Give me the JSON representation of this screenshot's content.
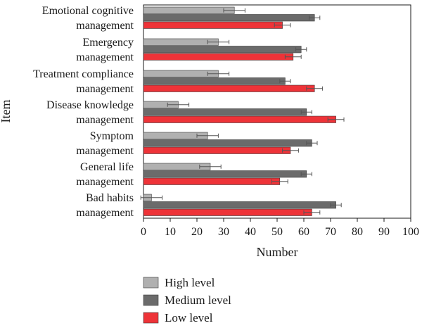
{
  "chart_data": {
    "type": "bar",
    "orientation": "horizontal",
    "categories": [
      [
        "Emotional cognitive",
        "management"
      ],
      [
        "Emergency",
        "management"
      ],
      [
        "Treatment compliance",
        "management"
      ],
      [
        "Disease knowledge",
        "management"
      ],
      [
        "Symptom",
        "management"
      ],
      [
        "General life",
        "management"
      ],
      [
        "Bad habits",
        "management"
      ]
    ],
    "series": [
      {
        "name": "High level",
        "color": "#b0b0b0",
        "values": [
          34,
          28,
          28,
          13,
          24,
          25,
          3
        ],
        "errors": [
          4,
          4,
          4,
          4,
          4,
          4,
          4
        ]
      },
      {
        "name": "Medium level",
        "color": "#6b6b6b",
        "values": [
          64,
          59,
          53,
          61,
          63,
          61,
          72
        ],
        "errors": [
          2,
          2,
          2,
          2,
          2,
          2,
          2
        ]
      },
      {
        "name": "Low level",
        "color": "#ee3338",
        "values": [
          52,
          56,
          64,
          72,
          55,
          51,
          63
        ],
        "errors": [
          3,
          3,
          3,
          3,
          3,
          3,
          3
        ]
      }
    ],
    "xlabel": "Number",
    "ylabel": "Item",
    "xlim": [
      0,
      100
    ],
    "xticks": [
      0,
      10,
      20,
      30,
      40,
      50,
      60,
      70,
      80,
      90,
      100
    ],
    "grid": false,
    "legend_position": "bottom"
  }
}
